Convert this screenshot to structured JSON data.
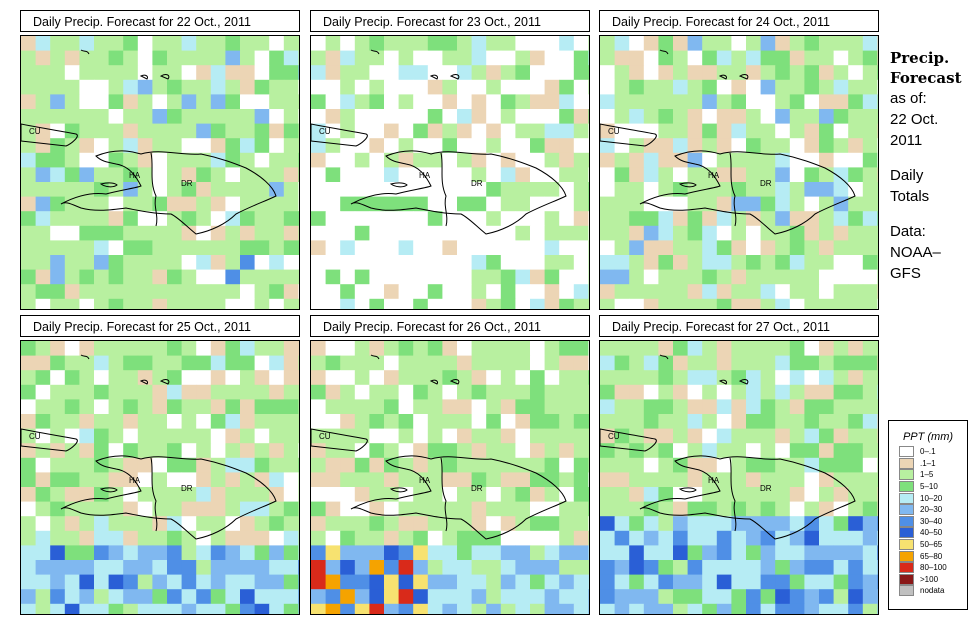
{
  "panels": [
    {
      "title": "Daily Precip. Forecast for  22 Oct., 2011",
      "pattern": "p1"
    },
    {
      "title": "Daily Precip. Forecast for  23 Oct., 2011",
      "pattern": "p2"
    },
    {
      "title": "Daily Precip. Forecast for  24 Oct., 2011",
      "pattern": "p3"
    },
    {
      "title": "Daily Precip. Forecast for  25 Oct., 2011",
      "pattern": "p4"
    },
    {
      "title": "Daily Precip. Forecast for  26 Oct., 2011",
      "pattern": "p5"
    },
    {
      "title": "Daily Precip. Forecast for  27 Oct., 2011",
      "pattern": "p6"
    }
  ],
  "map_labels": {
    "cuba": "CU",
    "haiti": "HA",
    "dominican_republic": "DR"
  },
  "side": {
    "title_line1": "Precip.",
    "title_line2": "Forecast",
    "asof_label": "as of:",
    "date_line1": "22 Oct.",
    "date_line2": "2011",
    "totals_line1": "Daily",
    "totals_line2": "Totals",
    "data_line1": "Data:",
    "data_line2": "NOAA–",
    "data_line3": "GFS"
  },
  "legend": {
    "title": "PPT (mm)",
    "items": [
      {
        "label": "0–.1",
        "color": "#ffffff"
      },
      {
        "label": ".1–1",
        "color": "#ecd5b5"
      },
      {
        "label": "1–5",
        "color": "#b8f0a0"
      },
      {
        "label": "5–10",
        "color": "#7ee07c"
      },
      {
        "label": "10–20",
        "color": "#b6ecf4"
      },
      {
        "label": "20–30",
        "color": "#80b8f0"
      },
      {
        "label": "30–40",
        "color": "#4f8fe6"
      },
      {
        "label": "40–50",
        "color": "#2a5fd6"
      },
      {
        "label": "50–65",
        "color": "#f7e270"
      },
      {
        "label": "65–80",
        "color": "#f5a300"
      },
      {
        "label": "80–100",
        "color": "#d92a1a"
      },
      {
        "label": ">100",
        "color": "#8a1818"
      },
      {
        "label": "nodata",
        "color": "#c0c0c0"
      }
    ]
  }
}
